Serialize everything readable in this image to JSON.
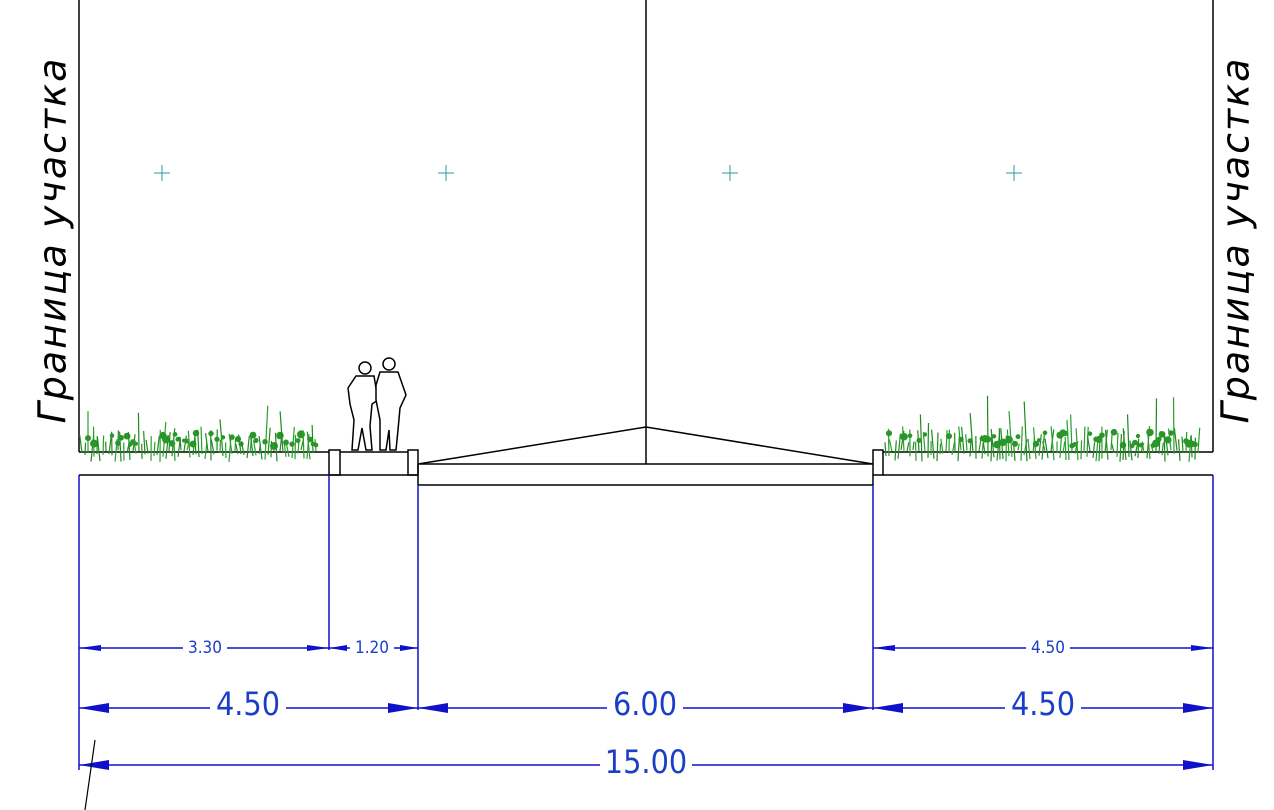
{
  "boundary_labels": [
    "Граница участка",
    "Граница участка"
  ],
  "dimensions": {
    "row1": [
      "3.30",
      "1.20",
      "4.50"
    ],
    "row2": [
      "4.50",
      "6.00",
      "4.50"
    ],
    "total": "15.00"
  }
}
